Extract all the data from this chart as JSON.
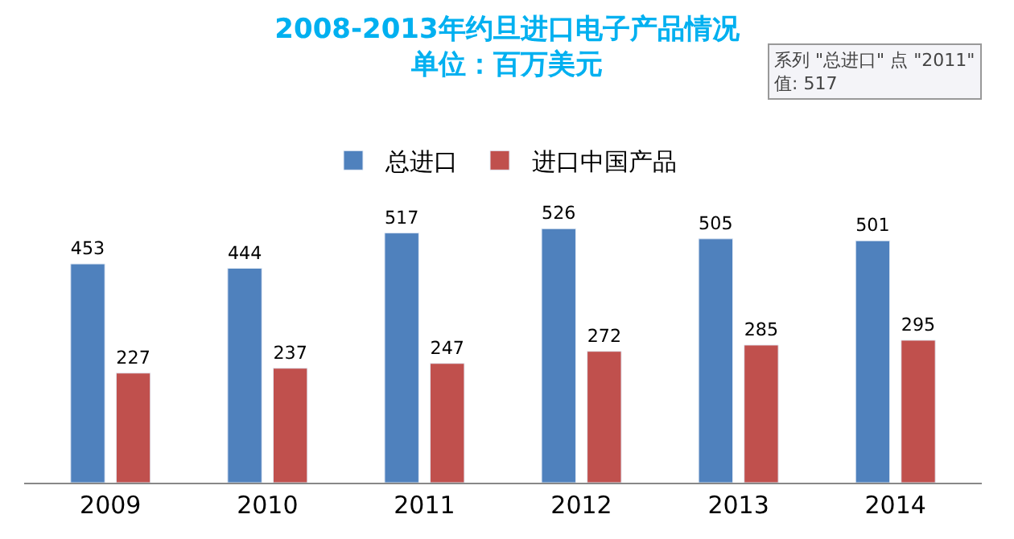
{
  "chart_data": {
    "type": "bar",
    "title": "2008-2013年约旦进口电子产品情况",
    "subtitle": "单位：百万美元",
    "categories": [
      "2009",
      "2010",
      "2011",
      "2012",
      "2013",
      "2014"
    ],
    "series": [
      {
        "name": "总进口",
        "color": "#4f81bd",
        "values": [
          453,
          444,
          517,
          526,
          505,
          501
        ]
      },
      {
        "name": "进口中国产品",
        "color": "#c0504d",
        "values": [
          227,
          237,
          247,
          272,
          285,
          295
        ]
      }
    ],
    "data_labels": true,
    "legend": "top",
    "annotations": [
      "系列 \"总进口\" 点 \"2011\"\n值: 517"
    ]
  }
}
